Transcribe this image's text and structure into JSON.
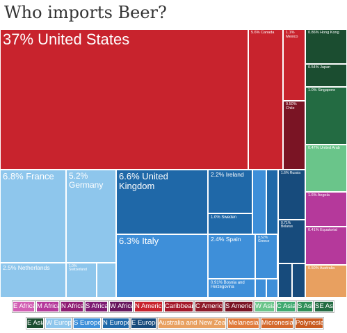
{
  "page_title": "Who imports Beer?",
  "chart_data": {
    "type": "treemap",
    "title": "Who imports Beer?",
    "items": [
      {
        "name": "United States",
        "label": "37% United States",
        "share": 37,
        "region": "N America"
      },
      {
        "name": "Canada",
        "label": "5.6% Canada",
        "share": 5.6,
        "region": "N America"
      },
      {
        "name": "Mexico",
        "label": "1.1% Mexico",
        "share": 1.1,
        "region": "N America"
      },
      {
        "name": "Chile",
        "label": "0.50% Chile",
        "share": 0.5,
        "region": "S America"
      },
      {
        "name": "Hong Kong",
        "label": "0.86% Hong Kong",
        "share": 0.86,
        "region": "E Asia"
      },
      {
        "name": "Japan",
        "label": "0.54% Japan",
        "share": 0.54,
        "region": "E Asia"
      },
      {
        "name": "Singapore",
        "label": "1.0% Singapore",
        "share": 1.0,
        "region": "SE Asia"
      },
      {
        "name": "United Arab Emirates",
        "label": "0.47% United Arab",
        "share": 0.47,
        "region": "W Asia"
      },
      {
        "name": "Angola",
        "label": "1.6% Angola",
        "share": 1.6,
        "region": "M Africa"
      },
      {
        "name": "Equatorial Guinea",
        "label": "0.41% Equatorial",
        "share": 0.41,
        "region": "M Africa"
      },
      {
        "name": "Australia",
        "label": "0.50% Australia",
        "share": 0.5,
        "region": "Australia and New Zealand"
      },
      {
        "name": "France",
        "label": "6.8% France",
        "share": 6.8,
        "region": "W Europe"
      },
      {
        "name": "Germany",
        "label": "5.2% Germany",
        "share": 5.2,
        "region": "W Europe"
      },
      {
        "name": "Netherlands",
        "label": "2.5% Netherlands",
        "share": 2.5,
        "region": "W Europe"
      },
      {
        "name": "Switzerland",
        "label": "1.0% Switzerland",
        "share": 1.0,
        "region": "W Europe"
      },
      {
        "name": "United Kingdom",
        "label": "6.6% United Kingdom",
        "share": 6.6,
        "region": "N Europe"
      },
      {
        "name": "Ireland",
        "label": "2.2% Ireland",
        "share": 2.2,
        "region": "N Europe"
      },
      {
        "name": "Sweden",
        "label": "1.0% Sweden",
        "share": 1.0,
        "region": "N Europe"
      },
      {
        "name": "Italy",
        "label": "6.3% Italy",
        "share": 6.3,
        "region": "S Europe"
      },
      {
        "name": "Spain",
        "label": "2.4% Spain",
        "share": 2.4,
        "region": "S Europe"
      },
      {
        "name": "Bosnia and Herzegovina",
        "label": "0.91% Bosnia and Herzegovina",
        "share": 0.91,
        "region": "S Europe"
      },
      {
        "name": "Greece",
        "label": "0.52% Greece",
        "share": 0.52,
        "region": "S Europe"
      },
      {
        "name": "Russia",
        "label": "1.6% Russia",
        "share": 1.6,
        "region": "E Europe"
      },
      {
        "name": "Belarus",
        "label": "0.71% Belarus",
        "share": 0.71,
        "region": "E Europe"
      }
    ]
  },
  "legend": [
    {
      "label": "E Africa",
      "color": "#d25fb3"
    },
    {
      "label": "M Africa",
      "color": "#b5399b"
    },
    {
      "label": "N Africa",
      "color": "#8f1d73"
    },
    {
      "label": "S Africa",
      "color": "#7d1a72"
    },
    {
      "label": "W Africa",
      "color": "#68175e"
    },
    {
      "label": "N America",
      "color": "#c8232d"
    },
    {
      "label": "Caribbean",
      "color": "#a4182a"
    },
    {
      "label": "C America",
      "color": "#8e1b2a"
    },
    {
      "label": "S America",
      "color": "#7a1424"
    },
    {
      "label": "W Asia",
      "color": "#6ac58a"
    },
    {
      "label": "C Asia",
      "color": "#3faa70"
    },
    {
      "label": "S Asia",
      "color": "#2f8f57"
    },
    {
      "label": "SE Asia",
      "color": "#236b42"
    },
    {
      "label": "E Asia",
      "color": "#1b4d30"
    },
    {
      "label": "W Europe",
      "color": "#8ec6ec"
    },
    {
      "label": "S Europe",
      "color": "#3e8fd9"
    },
    {
      "label": "N Europe",
      "color": "#1f68a8"
    },
    {
      "label": "E Europe",
      "color": "#174b7c"
    },
    {
      "label": "Australia and New Zealand",
      "color": "#e8a060"
    },
    {
      "label": "Melanesia",
      "color": "#e07a3a"
    },
    {
      "label": "Micronesia",
      "color": "#d4682a"
    },
    {
      "label": "Polynesia",
      "color": "#c85a1f"
    }
  ]
}
